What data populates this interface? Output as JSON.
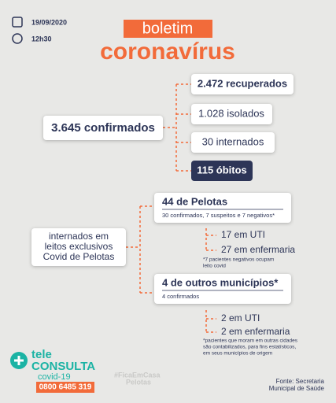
{
  "header": {
    "date": "19/09/2020",
    "time": "12h30",
    "tag": "boletim",
    "title": "coronavírus"
  },
  "summary": {
    "confirmed": "3.645 confirmados",
    "outcomes": [
      "2.472 recuperados",
      "1.028 isolados",
      "30 internados",
      "115 óbitos"
    ]
  },
  "hospital": {
    "label": [
      "internados em",
      "leitos exclusivos",
      "Covid de Pelotas"
    ],
    "groups": [
      {
        "title": "44 de Pelotas",
        "detail": "30 confirmados, 7 suspeitos e 7 negativos*",
        "items": [
          "17 em UTI",
          "27 em enfermaria"
        ],
        "note": [
          "*7 pacientes negativos ocupam",
          "leito covid"
        ]
      },
      {
        "title": "4 de outros municípios*",
        "detail": "4 confirmados",
        "items": [
          "2 em UTI",
          "2 em enfermaria"
        ],
        "note": [
          "*pacientes que moram em outras cidades",
          "são contabilizados,  para fins estatísticos,",
          "em seus municípios de origem"
        ]
      }
    ]
  },
  "footer": {
    "logo": [
      "tele",
      "CONSULTA",
      "covid-19"
    ],
    "phone": "0800 6485 319",
    "hashtag": [
      "#FicaEmCasa",
      "Pelotas"
    ],
    "source": [
      "Fonte: Secretaria",
      "Municipal de Saúde"
    ]
  }
}
